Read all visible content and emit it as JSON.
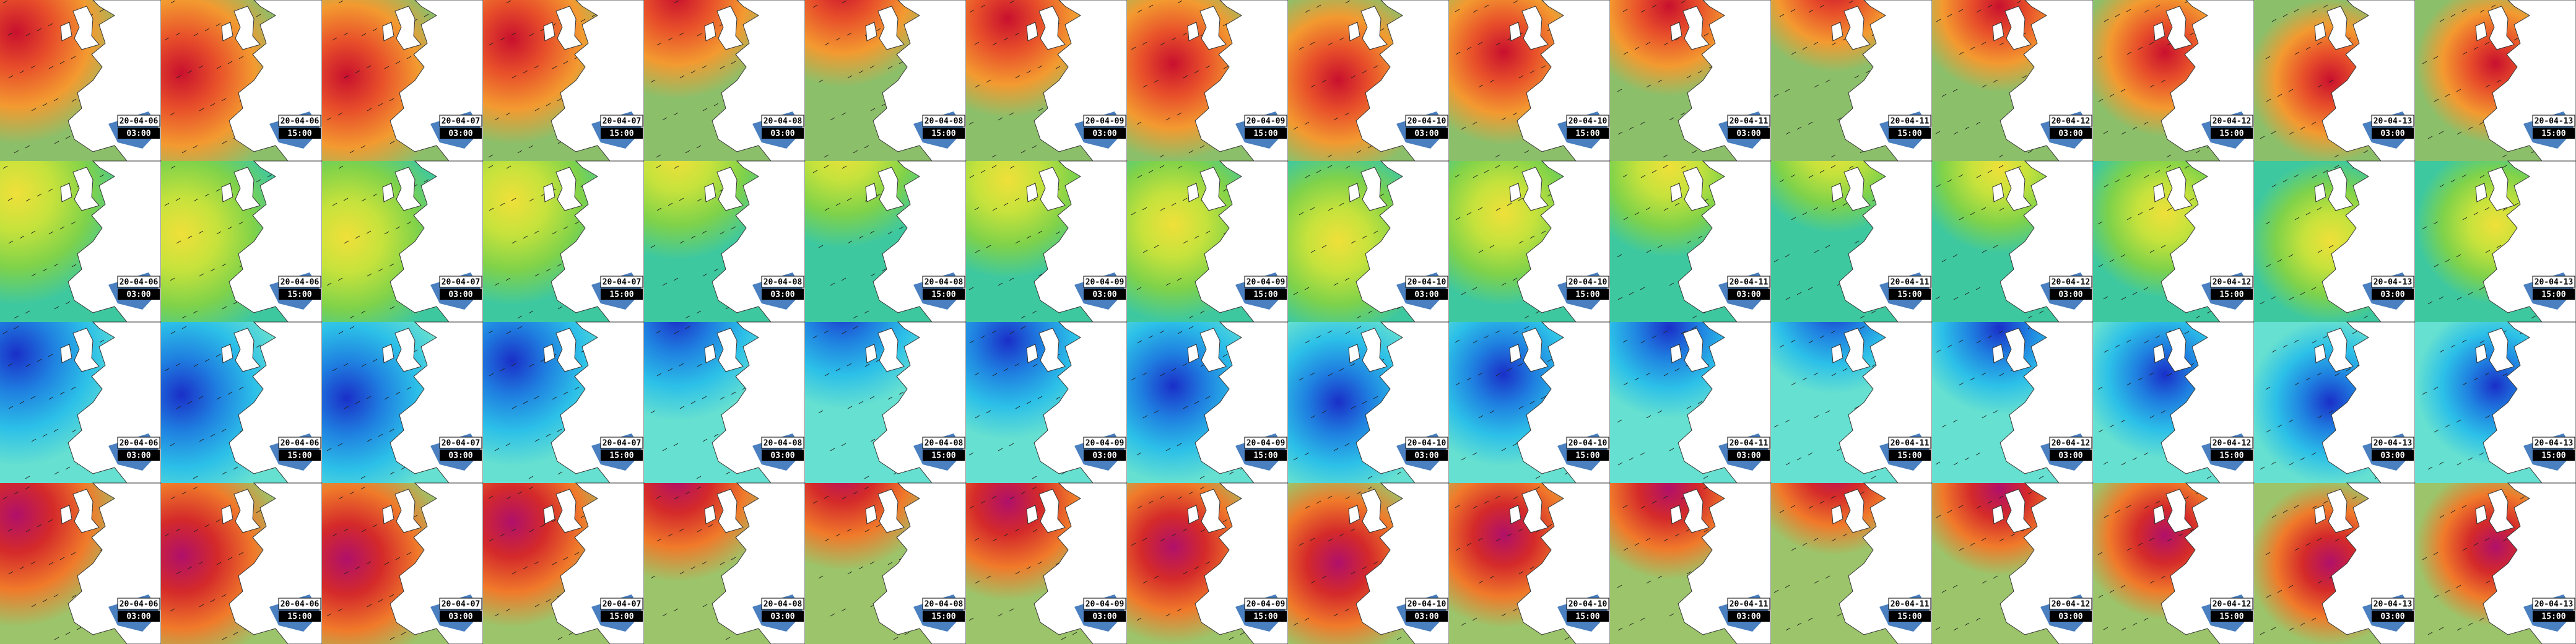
{
  "rows": [
    {
      "tiles": [
        {
          "date": "20-04-06",
          "time": "03:00"
        },
        {
          "date": "20-04-06",
          "time": "15:00"
        },
        {
          "date": "20-04-07",
          "time": "03:00"
        },
        {
          "date": "20-04-07",
          "time": "15:00"
        },
        {
          "date": "20-04-08",
          "time": "03:00"
        },
        {
          "date": "20-04-08",
          "time": "15:00"
        },
        {
          "date": "20-04-09",
          "time": "03:00"
        },
        {
          "date": "20-04-09",
          "time": "15:00"
        },
        {
          "date": "20-04-10",
          "time": "03:00"
        },
        {
          "date": "20-04-10",
          "time": "15:00"
        },
        {
          "date": "20-04-11",
          "time": "03:00"
        },
        {
          "date": "20-04-11",
          "time": "15:00"
        },
        {
          "date": "20-04-12",
          "time": "03:00"
        },
        {
          "date": "20-04-12",
          "time": "15:00"
        },
        {
          "date": "20-04-13",
          "time": "03:00"
        },
        {
          "date": "20-04-13",
          "time": "15:00"
        }
      ]
    },
    {
      "tiles": [
        {
          "date": "20-04-06",
          "time": "03:00"
        },
        {
          "date": "20-04-06",
          "time": "15:00"
        },
        {
          "date": "20-04-07",
          "time": "03:00"
        },
        {
          "date": "20-04-07",
          "time": "15:00"
        },
        {
          "date": "20-04-08",
          "time": "03:00"
        },
        {
          "date": "20-04-08",
          "time": "15:00"
        },
        {
          "date": "20-04-09",
          "time": "03:00"
        },
        {
          "date": "20-04-09",
          "time": "15:00"
        },
        {
          "date": "20-04-10",
          "time": "03:00"
        },
        {
          "date": "20-04-10",
          "time": "15:00"
        },
        {
          "date": "20-04-11",
          "time": "03:00"
        },
        {
          "date": "20-04-11",
          "time": "15:00"
        },
        {
          "date": "20-04-12",
          "time": "03:00"
        },
        {
          "date": "20-04-12",
          "time": "15:00"
        },
        {
          "date": "20-04-13",
          "time": "03:00"
        },
        {
          "date": "20-04-13",
          "time": "15:00"
        }
      ]
    },
    {
      "tiles": [
        {
          "date": "20-04-06",
          "time": "03:00"
        },
        {
          "date": "20-04-06",
          "time": "15:00"
        },
        {
          "date": "20-04-07",
          "time": "03:00"
        },
        {
          "date": "20-04-07",
          "time": "15:00"
        },
        {
          "date": "20-04-08",
          "time": "03:00"
        },
        {
          "date": "20-04-08",
          "time": "15:00"
        },
        {
          "date": "20-04-09",
          "time": "03:00"
        },
        {
          "date": "20-04-09",
          "time": "15:00"
        },
        {
          "date": "20-04-10",
          "time": "03:00"
        },
        {
          "date": "20-04-10",
          "time": "15:00"
        },
        {
          "date": "20-04-11",
          "time": "03:00"
        },
        {
          "date": "20-04-11",
          "time": "15:00"
        },
        {
          "date": "20-04-12",
          "time": "03:00"
        },
        {
          "date": "20-04-12",
          "time": "15:00"
        },
        {
          "date": "20-04-13",
          "time": "03:00"
        },
        {
          "date": "20-04-13",
          "time": "15:00"
        }
      ]
    },
    {
      "tiles": [
        {
          "date": "20-04-06",
          "time": "03:00"
        },
        {
          "date": "20-04-06",
          "time": "15:00"
        },
        {
          "date": "20-04-07",
          "time": "03:00"
        },
        {
          "date": "20-04-07",
          "time": "15:00"
        },
        {
          "date": "20-04-08",
          "time": "03:00"
        },
        {
          "date": "20-04-08",
          "time": "15:00"
        },
        {
          "date": "20-04-09",
          "time": "03:00"
        },
        {
          "date": "20-04-09",
          "time": "15:00"
        },
        {
          "date": "20-04-10",
          "time": "03:00"
        },
        {
          "date": "20-04-10",
          "time": "15:00"
        },
        {
          "date": "20-04-11",
          "time": "03:00"
        },
        {
          "date": "20-04-11",
          "time": "15:00"
        },
        {
          "date": "20-04-12",
          "time": "03:00"
        },
        {
          "date": "20-04-12",
          "time": "15:00"
        },
        {
          "date": "20-04-13",
          "time": "03:00"
        },
        {
          "date": "20-04-13",
          "time": "15:00"
        }
      ]
    }
  ]
}
